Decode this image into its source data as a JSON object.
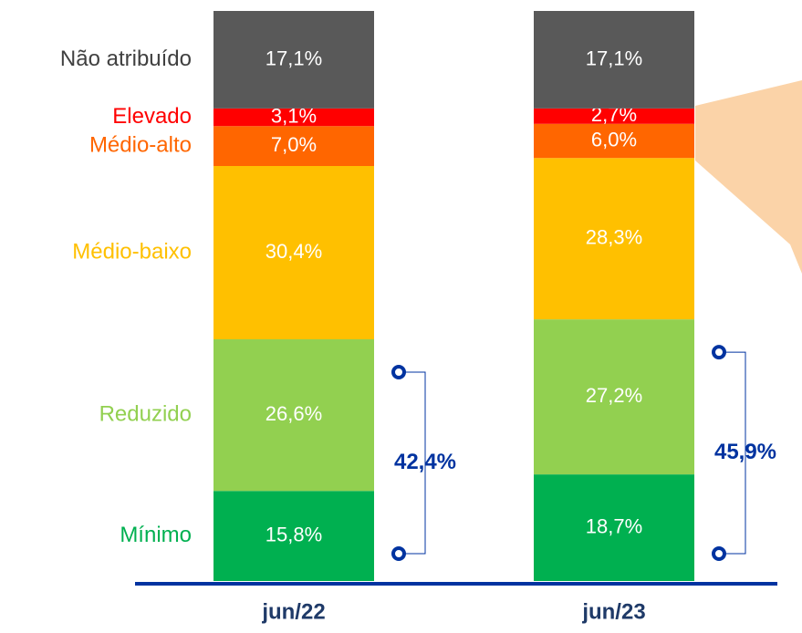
{
  "chart_data": {
    "type": "stacked_bar",
    "categories": [
      "jun/22",
      "jun/23"
    ],
    "ylim": [
      0,
      100
    ],
    "series": [
      {
        "name": "Mínimo",
        "color": "#00b050",
        "values": [
          15.8,
          18.7
        ],
        "value_labels": [
          "15,8%",
          "18,7%"
        ]
      },
      {
        "name": "Reduzido",
        "color": "#92d050",
        "values": [
          26.6,
          27.2
        ],
        "value_labels": [
          "26,6%",
          "27,2%"
        ]
      },
      {
        "name": "Médio-baixo",
        "color": "#ffc000",
        "values": [
          30.4,
          28.3
        ],
        "value_labels": [
          "30,4%",
          "28,3%"
        ]
      },
      {
        "name": "Médio-alto",
        "color": "#ff6600",
        "values": [
          7.0,
          6.0
        ],
        "value_labels": [
          "7,0%",
          "6,0%"
        ]
      },
      {
        "name": "Elevado",
        "color": "#ff0000",
        "values": [
          3.1,
          2.7
        ],
        "value_labels": [
          "3,1%",
          "2,7%"
        ]
      },
      {
        "name": "Não atribuído",
        "color": "#595959",
        "values": [
          17.1,
          17.1
        ],
        "value_labels": [
          "17,1%",
          "17,1%"
        ]
      }
    ],
    "annotations": [
      {
        "text": "42,4%"
      },
      {
        "text": "45,9%"
      }
    ]
  }
}
